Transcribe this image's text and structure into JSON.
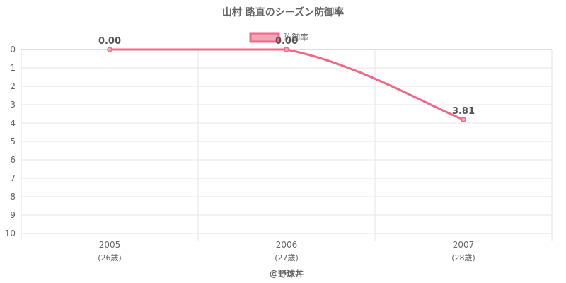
{
  "chart_data": {
    "type": "line",
    "title": "山村 路直のシーズン防御率",
    "legend": "防御率",
    "legend_position": "top",
    "categories": [
      "2005",
      "2006",
      "2007"
    ],
    "category_sublabels": [
      "(26歳)",
      "(27歳)",
      "(28歳)"
    ],
    "series": [
      {
        "name": "防御率",
        "values": [
          0.0,
          0.0,
          3.81
        ],
        "labels": [
          "0.00",
          "0.00",
          "3.81"
        ]
      }
    ],
    "y_ticks": [
      "0",
      "1",
      "2",
      "3",
      "4",
      "5",
      "6",
      "7",
      "8",
      "9",
      "10"
    ],
    "ylim": [
      0,
      10
    ],
    "y_reversed": true,
    "grid": true,
    "colors": {
      "line": "#f06788",
      "fill": "#f5a6b8",
      "grid": "#e6e6e6"
    }
  },
  "credit": "@野球丼"
}
